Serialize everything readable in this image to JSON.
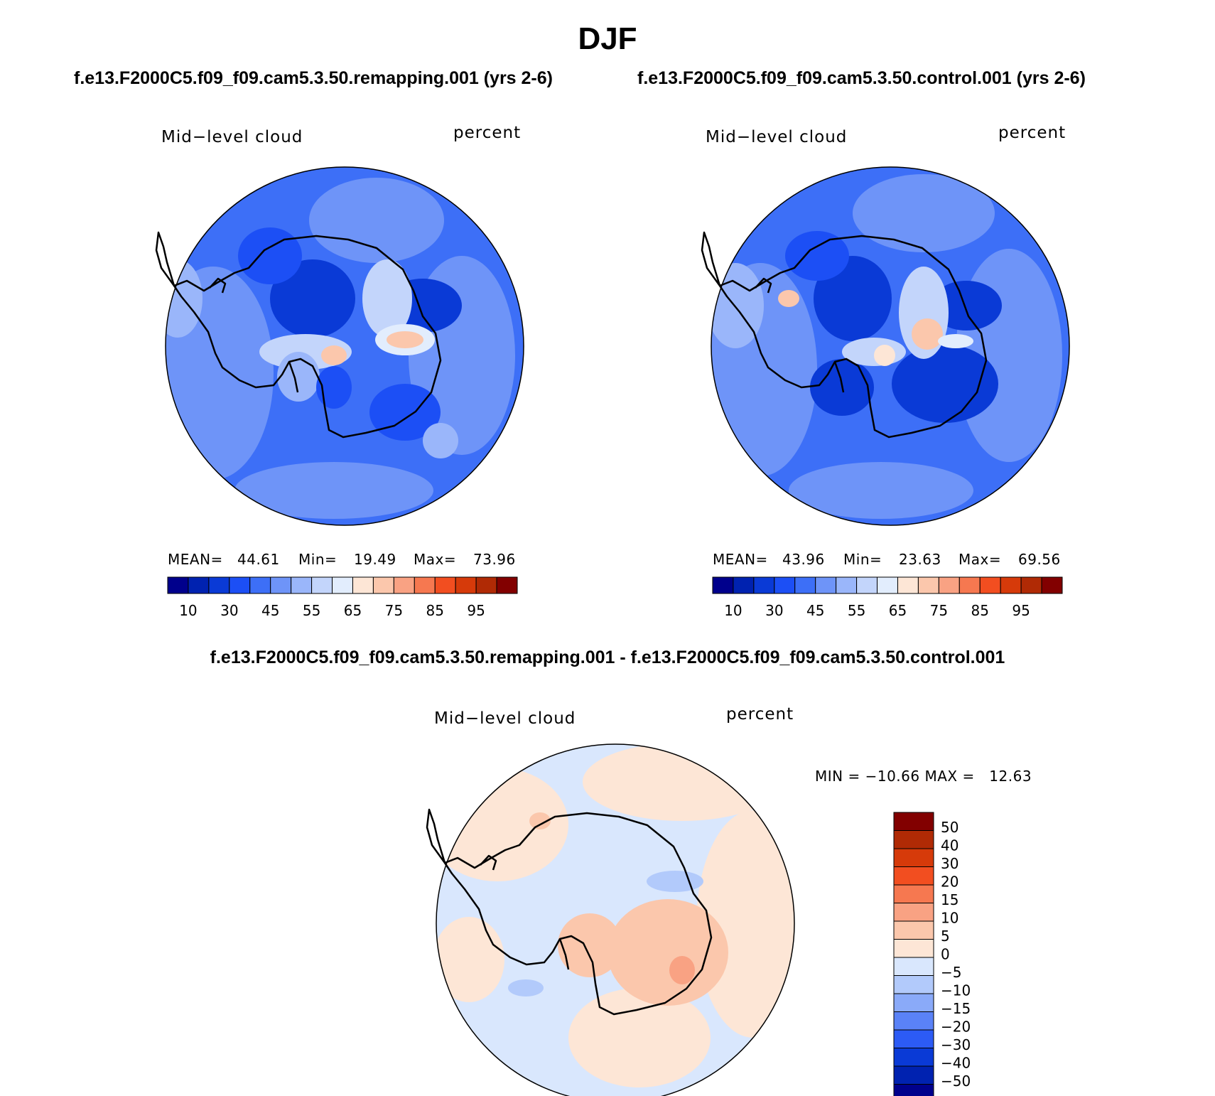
{
  "title": "DJF",
  "panels": [
    {
      "case_title": "f.e13.F2000C5.f09_f09.cam5.3.50.remapping.001 (yrs 2-6)",
      "variable": "Mid−level cloud",
      "units": "percent",
      "stats": {
        "mean_label": "MEAN=",
        "mean": "44.61",
        "min_label": "Min=",
        "min": "19.49",
        "max_label": "Max=",
        "max": "73.96"
      }
    },
    {
      "case_title": "f.e13.F2000C5.f09_f09.cam5.3.50.control.001 (yrs 2-6)",
      "variable": "Mid−level cloud",
      "units": "percent",
      "stats": {
        "mean_label": "MEAN=",
        "mean": "43.96",
        "min_label": "Min=",
        "min": "23.63",
        "max_label": "Max=",
        "max": "69.56"
      }
    }
  ],
  "difference": {
    "title": "f.e13.F2000C5.f09_f09.cam5.3.50.remapping.001 - f.e13.F2000C5.f09_f09.cam5.3.50.control.001",
    "variable": "Mid−level cloud",
    "units": "percent",
    "minmax": "MIN = −10.66 MAX =   12.63"
  },
  "chart_data": [
    {
      "type": "heatmap",
      "projection": "south-polar stereographic",
      "title": "Mid−level cloud",
      "units": "percent",
      "stats": {
        "mean": 44.61,
        "min": 19.49,
        "max": 73.96
      },
      "colorbar": {
        "orientation": "horizontal",
        "levels": [
          5,
          10,
          20,
          30,
          40,
          45,
          50,
          55,
          60,
          65,
          70,
          75,
          80,
          85,
          90,
          95
        ],
        "tick_labels": [
          "10",
          "30",
          "45",
          "55",
          "65",
          "75",
          "85",
          "95"
        ],
        "colors": [
          "#00008c",
          "#0022b0",
          "#0a3ad6",
          "#1c4ff5",
          "#3d6ff7",
          "#6e94f8",
          "#9ab6fa",
          "#c3d5fb",
          "#e2edfd",
          "#fde6d6",
          "#fbc7ac",
          "#f9a283",
          "#f67850",
          "#f24e20",
          "#d63a0a",
          "#b02a05",
          "#820000"
        ]
      }
    },
    {
      "type": "heatmap",
      "projection": "south-polar stereographic",
      "title": "Mid−level cloud",
      "units": "percent",
      "stats": {
        "mean": 43.96,
        "min": 23.63,
        "max": 69.56
      },
      "colorbar": {
        "orientation": "horizontal",
        "levels": [
          5,
          10,
          20,
          30,
          40,
          45,
          50,
          55,
          60,
          65,
          70,
          75,
          80,
          85,
          90,
          95
        ],
        "tick_labels": [
          "10",
          "30",
          "45",
          "55",
          "65",
          "75",
          "85",
          "95"
        ],
        "colors": [
          "#00008c",
          "#0022b0",
          "#0a3ad6",
          "#1c4ff5",
          "#3d6ff7",
          "#6e94f8",
          "#9ab6fa",
          "#c3d5fb",
          "#e2edfd",
          "#fde6d6",
          "#fbc7ac",
          "#f9a283",
          "#f67850",
          "#f24e20",
          "#d63a0a",
          "#b02a05",
          "#820000"
        ]
      }
    },
    {
      "type": "heatmap",
      "projection": "south-polar stereographic",
      "title": "Mid−level cloud",
      "units": "percent",
      "stats": {
        "min": -10.66,
        "max": 12.63
      },
      "colorbar": {
        "orientation": "vertical",
        "tick_labels": [
          "50",
          "40",
          "30",
          "20",
          "15",
          "10",
          "5",
          "0",
          "−5",
          "−10",
          "−15",
          "−20",
          "−30",
          "−40",
          "−50"
        ],
        "colors": [
          "#820000",
          "#b02a05",
          "#d63a0a",
          "#f24e20",
          "#f67850",
          "#f9a283",
          "#fbc7ac",
          "#fde6d6",
          "#d9e7fd",
          "#b2cafb",
          "#8aaaf9",
          "#5a82f7",
          "#2c5bf5",
          "#0a3ad6",
          "#0022b0",
          "#00008c"
        ]
      }
    }
  ]
}
